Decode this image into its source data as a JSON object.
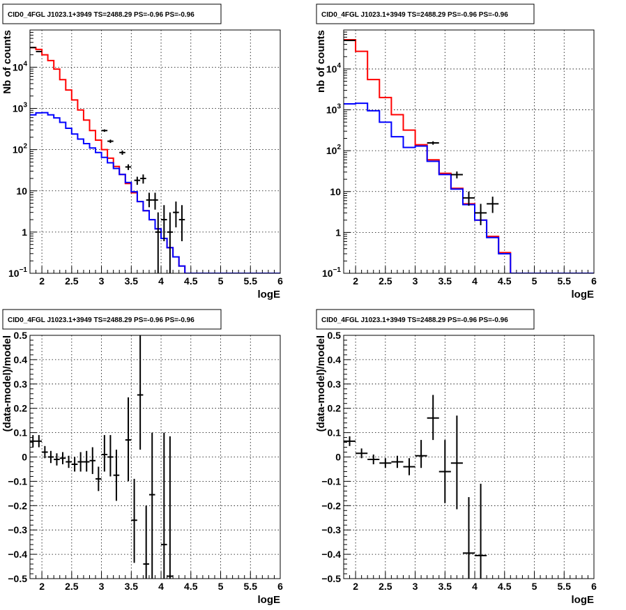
{
  "chart_data": [
    {
      "type": "line",
      "title": "CID0_4FGL J1023.1+3949 TS=2488.29 PS=-0.96 PS=-0.96",
      "xlabel": "logE",
      "ylabel": "Nb of counts",
      "xlim": [
        1.8,
        6
      ],
      "ylim": [
        0.1,
        80000
      ],
      "yscale": "log",
      "grid": true,
      "xticks": [
        "2",
        "2.5",
        "3",
        "3.5",
        "4",
        "4.5",
        "5",
        "5.5",
        "6"
      ],
      "yticks": [
        {
          "v": 0.1,
          "label": "10",
          "sup": "−1"
        },
        {
          "v": 1,
          "label": "1",
          "sup": ""
        },
        {
          "v": 10,
          "label": "10",
          "sup": ""
        },
        {
          "v": 100,
          "label": "10",
          "sup": "2"
        },
        {
          "v": 1000,
          "label": "10",
          "sup": "3"
        },
        {
          "v": 10000,
          "label": "10",
          "sup": "4"
        }
      ],
      "series": [
        {
          "color": "#ff0000",
          "style": "step",
          "x0": 1.8,
          "dx": 0.1,
          "values": [
            30000,
            27000,
            20000,
            14500,
            9000,
            5000,
            2800,
            1600,
            920,
            520,
            290,
            170,
            100,
            62,
            39,
            25,
            15,
            9,
            5.5,
            3.3,
            2.0,
            1.2,
            0.7,
            0.42,
            0.25,
            0.15,
            0.09,
            0.09,
            0.09,
            0.09,
            0.09,
            0.09,
            0.09,
            0.09,
            0.09,
            0.09,
            0.09,
            0.09,
            0.09,
            0.09,
            0.09,
            0.09
          ]
        },
        {
          "color": "#0000ff",
          "style": "step",
          "x0": 1.8,
          "dx": 0.1,
          "values": [
            700,
            780,
            790,
            700,
            590,
            460,
            330,
            240,
            180,
            140,
            110,
            85,
            65,
            48,
            35,
            25,
            16,
            9.5,
            5.5,
            3.3,
            2.0,
            1.2,
            0.7,
            0.42,
            0.25,
            0.15,
            0.1,
            0.1,
            0.1,
            0.1,
            0.1,
            0.1,
            0.1,
            0.1,
            0.1,
            0.1,
            0.1,
            0.1,
            0.1,
            0.1,
            0.1,
            0.1
          ]
        },
        {
          "color": "#000000",
          "style": "errorbar",
          "points": [
            {
              "x": 1.85,
              "y": 30000,
              "xerr": 0.05,
              "ylo": 29000,
              "yhi": 31000
            },
            {
              "x": 1.95,
              "y": 24000,
              "xerr": 0.05,
              "ylo": 23200,
              "yhi": 24800
            },
            {
              "x": 3.05,
              "y": 290,
              "xerr": 0.05,
              "ylo": 270,
              "yhi": 310
            },
            {
              "x": 3.15,
              "y": 160,
              "xerr": 0.05,
              "ylo": 145,
              "yhi": 175
            },
            {
              "x": 3.35,
              "y": 85,
              "xerr": 0.05,
              "ylo": 75,
              "yhi": 95
            },
            {
              "x": 3.45,
              "y": 38,
              "xerr": 0.05,
              "ylo": 32,
              "yhi": 44
            },
            {
              "x": 3.6,
              "y": 18,
              "xerr": 0.05,
              "ylo": 14,
              "yhi": 22
            },
            {
              "x": 3.7,
              "y": 20,
              "xerr": 0.05,
              "ylo": 15,
              "yhi": 25
            },
            {
              "x": 3.8,
              "y": 6,
              "xerr": 0.05,
              "ylo": 4,
              "yhi": 9
            },
            {
              "x": 3.9,
              "y": 6,
              "xerr": 0.05,
              "ylo": 3.5,
              "yhi": 9
            },
            {
              "x": 3.95,
              "y": 1,
              "xerr": 0.05,
              "ylo": 0.1,
              "yhi": 3
            },
            {
              "x": 4.05,
              "y": 2,
              "xerr": 0.05,
              "ylo": 0.6,
              "yhi": 4.5
            },
            {
              "x": 4.15,
              "y": 1,
              "xerr": 0.05,
              "ylo": 0.1,
              "yhi": 3
            },
            {
              "x": 4.25,
              "y": 3,
              "xerr": 0.05,
              "ylo": 1.3,
              "yhi": 5.5
            },
            {
              "x": 4.35,
              "y": 2,
              "xerr": 0.05,
              "ylo": 0.6,
              "yhi": 4.5
            }
          ]
        }
      ]
    },
    {
      "type": "line",
      "title": "CID0_4FGL J1023.1+3949 TS=2488.29 PS=-0.96 PS=-0.96",
      "xlabel": "logE",
      "ylabel": "nb of counts",
      "xlim": [
        1.8,
        6
      ],
      "ylim": [
        0.1,
        90000
      ],
      "yscale": "log",
      "grid": true,
      "xticks": [
        "2",
        "2.5",
        "3",
        "3.5",
        "4",
        "4.5",
        "5",
        "5.5",
        "6"
      ],
      "yticks": [
        {
          "v": 0.1,
          "label": "10",
          "sup": "−1"
        },
        {
          "v": 1,
          "label": "1",
          "sup": ""
        },
        {
          "v": 10,
          "label": "10",
          "sup": ""
        },
        {
          "v": 100,
          "label": "10",
          "sup": "2"
        },
        {
          "v": 1000,
          "label": "10",
          "sup": "3"
        },
        {
          "v": 10000,
          "label": "10",
          "sup": "4"
        }
      ],
      "series": [
        {
          "color": "#ff0000",
          "style": "step",
          "x0": 1.8,
          "dx": 0.2,
          "values": [
            52000,
            27000,
            5500,
            2000,
            760,
            320,
            140,
            60,
            28,
            12,
            5.0,
            2.0,
            0.8,
            0.32,
            0.09,
            0.09,
            0.09,
            0.09,
            0.09,
            0.09,
            0.09
          ]
        },
        {
          "color": "#0000ff",
          "style": "step",
          "x0": 1.8,
          "dx": 0.2,
          "values": [
            1400,
            1450,
            950,
            500,
            220,
            120,
            130,
            55,
            26,
            11.5,
            4.8,
            2.0,
            0.75,
            0.3,
            0.1,
            0.1,
            0.1,
            0.1,
            0.1,
            0.1,
            0.1
          ]
        },
        {
          "color": "#000000",
          "style": "errorbar",
          "points": [
            {
              "x": 1.9,
              "y": 50000,
              "xerr": 0.1,
              "ylo": 49000,
              "yhi": 51000
            },
            {
              "x": 3.3,
              "y": 155,
              "xerr": 0.1,
              "ylo": 140,
              "yhi": 170
            },
            {
              "x": 3.7,
              "y": 26,
              "xerr": 0.1,
              "ylo": 21,
              "yhi": 31
            },
            {
              "x": 3.9,
              "y": 7,
              "xerr": 0.1,
              "ylo": 4.5,
              "yhi": 10
            },
            {
              "x": 4.1,
              "y": 3,
              "xerr": 0.1,
              "ylo": 1.5,
              "yhi": 5
            },
            {
              "x": 4.3,
              "y": 5,
              "xerr": 0.1,
              "ylo": 3,
              "yhi": 7.5
            }
          ]
        }
      ]
    },
    {
      "type": "scatter",
      "title": "CID0_4FGL J1023.1+3949 TS=2488.29 PS=-0.96 PS=-0.96",
      "xlabel": "logE",
      "ylabel": "(data-model)/model",
      "xlim": [
        1.8,
        6
      ],
      "ylim": [
        -0.5,
        0.5
      ],
      "yscale": "linear",
      "grid": true,
      "xticks": [
        "2",
        "2.5",
        "3",
        "3.5",
        "4",
        "4.5",
        "5",
        "5.5",
        "6"
      ],
      "yticks": [
        {
          "v": -0.5,
          "label": "−0.5",
          "sup": ""
        },
        {
          "v": -0.4,
          "label": "−0.4",
          "sup": ""
        },
        {
          "v": -0.3,
          "label": "−0.3",
          "sup": ""
        },
        {
          "v": -0.2,
          "label": "−0.2",
          "sup": ""
        },
        {
          "v": -0.1,
          "label": "−0.1",
          "sup": ""
        },
        {
          "v": 0,
          "label": "0",
          "sup": ""
        },
        {
          "v": 0.1,
          "label": "0.1",
          "sup": ""
        },
        {
          "v": 0.2,
          "label": "0.2",
          "sup": ""
        },
        {
          "v": 0.3,
          "label": "0.3",
          "sup": ""
        },
        {
          "v": 0.4,
          "label": "0.4",
          "sup": ""
        },
        {
          "v": 0.5,
          "label": "0.5",
          "sup": ""
        }
      ],
      "series": [
        {
          "color": "#000000",
          "style": "errorbar",
          "points": [
            {
              "x": 1.85,
              "y": 0.065,
              "xerr": 0.05,
              "ylo": 0.04,
              "yhi": 0.09
            },
            {
              "x": 1.95,
              "y": 0.065,
              "xerr": 0.05,
              "ylo": 0.04,
              "yhi": 0.09
            },
            {
              "x": 2.05,
              "y": 0.02,
              "xerr": 0.05,
              "ylo": -0.005,
              "yhi": 0.045
            },
            {
              "x": 2.15,
              "y": 0.0,
              "xerr": 0.05,
              "ylo": -0.025,
              "yhi": 0.025
            },
            {
              "x": 2.25,
              "y": -0.01,
              "xerr": 0.05,
              "ylo": -0.035,
              "yhi": 0.015
            },
            {
              "x": 2.35,
              "y": -0.005,
              "xerr": 0.05,
              "ylo": -0.03,
              "yhi": 0.02
            },
            {
              "x": 2.45,
              "y": -0.02,
              "xerr": 0.05,
              "ylo": -0.045,
              "yhi": 0.005
            },
            {
              "x": 2.55,
              "y": -0.03,
              "xerr": 0.05,
              "ylo": -0.06,
              "yhi": 0.0
            },
            {
              "x": 2.65,
              "y": -0.02,
              "xerr": 0.05,
              "ylo": -0.06,
              "yhi": 0.02
            },
            {
              "x": 2.75,
              "y": -0.02,
              "xerr": 0.05,
              "ylo": -0.06,
              "yhi": 0.025
            },
            {
              "x": 2.85,
              "y": -0.015,
              "xerr": 0.05,
              "ylo": -0.07,
              "yhi": 0.04
            },
            {
              "x": 2.95,
              "y": -0.09,
              "xerr": 0.05,
              "ylo": -0.14,
              "yhi": -0.04
            },
            {
              "x": 3.05,
              "y": 0.01,
              "xerr": 0.05,
              "ylo": -0.06,
              "yhi": 0.09
            },
            {
              "x": 3.15,
              "y": 0.0,
              "xerr": 0.05,
              "ylo": -0.08,
              "yhi": 0.09
            },
            {
              "x": 3.25,
              "y": -0.075,
              "xerr": 0.05,
              "ylo": -0.18,
              "yhi": 0.03
            },
            {
              "x": 3.45,
              "y": 0.07,
              "xerr": 0.05,
              "ylo": -0.1,
              "yhi": 0.245
            },
            {
              "x": 3.55,
              "y": -0.26,
              "xerr": 0.05,
              "ylo": -0.435,
              "yhi": -0.09
            },
            {
              "x": 3.65,
              "y": 0.255,
              "xerr": 0.05,
              "ylo": 0.03,
              "yhi": 0.5
            },
            {
              "x": 3.75,
              "y": -0.44,
              "xerr": 0.05,
              "ylo": -0.5,
              "yhi": -0.2
            },
            {
              "x": 3.85,
              "y": -0.155,
              "xerr": 0.05,
              "ylo": -0.5,
              "yhi": 0.1
            },
            {
              "x": 4.05,
              "y": -0.36,
              "xerr": 0.05,
              "ylo": -0.5,
              "yhi": 0.1
            },
            {
              "x": 4.15,
              "y": -0.49,
              "xerr": 0.05,
              "ylo": -0.5,
              "yhi": 0.085
            }
          ]
        }
      ]
    },
    {
      "type": "scatter",
      "title": "CID0_4FGL J1023.1+3949 TS=2488.29 PS=-0.96 PS=-0.96",
      "xlabel": "logE",
      "ylabel": "(data-model)/model",
      "xlim": [
        1.8,
        6
      ],
      "ylim": [
        -0.5,
        0.5
      ],
      "yscale": "linear",
      "grid": true,
      "xticks": [
        "2",
        "2.5",
        "3",
        "3.5",
        "4",
        "4.5",
        "5",
        "5.5",
        "6"
      ],
      "yticks": [
        {
          "v": -0.5,
          "label": "−0.5",
          "sup": ""
        },
        {
          "v": -0.4,
          "label": "−0.4",
          "sup": ""
        },
        {
          "v": -0.3,
          "label": "−0.3",
          "sup": ""
        },
        {
          "v": -0.2,
          "label": "−0.2",
          "sup": ""
        },
        {
          "v": -0.1,
          "label": "−0.1",
          "sup": ""
        },
        {
          "v": 0,
          "label": "0",
          "sup": ""
        },
        {
          "v": 0.1,
          "label": "0.1",
          "sup": ""
        },
        {
          "v": 0.2,
          "label": "0.2",
          "sup": ""
        },
        {
          "v": 0.3,
          "label": "0.3",
          "sup": ""
        },
        {
          "v": 0.4,
          "label": "0.4",
          "sup": ""
        },
        {
          "v": 0.5,
          "label": "0.5",
          "sup": ""
        }
      ],
      "series": [
        {
          "color": "#000000",
          "style": "errorbar",
          "points": [
            {
              "x": 1.9,
              "y": 0.065,
              "xerr": 0.1,
              "ylo": 0.045,
              "yhi": 0.085
            },
            {
              "x": 2.1,
              "y": 0.015,
              "xerr": 0.1,
              "ylo": -0.005,
              "yhi": 0.035
            },
            {
              "x": 2.3,
              "y": -0.01,
              "xerr": 0.1,
              "ylo": -0.03,
              "yhi": 0.01
            },
            {
              "x": 2.5,
              "y": -0.025,
              "xerr": 0.1,
              "ylo": -0.045,
              "yhi": -0.005
            },
            {
              "x": 2.7,
              "y": -0.02,
              "xerr": 0.1,
              "ylo": -0.045,
              "yhi": 0.005
            },
            {
              "x": 2.9,
              "y": -0.04,
              "xerr": 0.1,
              "ylo": -0.075,
              "yhi": -0.005
            },
            {
              "x": 3.1,
              "y": 0.005,
              "xerr": 0.1,
              "ylo": -0.045,
              "yhi": 0.07
            },
            {
              "x": 3.3,
              "y": 0.16,
              "xerr": 0.1,
              "ylo": 0.07,
              "yhi": 0.255
            },
            {
              "x": 3.5,
              "y": -0.06,
              "xerr": 0.1,
              "ylo": -0.19,
              "yhi": 0.07
            },
            {
              "x": 3.7,
              "y": -0.025,
              "xerr": 0.1,
              "ylo": -0.215,
              "yhi": 0.17
            },
            {
              "x": 3.9,
              "y": -0.395,
              "xerr": 0.1,
              "ylo": -0.5,
              "yhi": -0.165
            },
            {
              "x": 4.1,
              "y": -0.405,
              "xerr": 0.1,
              "ylo": -0.5,
              "yhi": -0.11
            }
          ]
        }
      ]
    }
  ]
}
